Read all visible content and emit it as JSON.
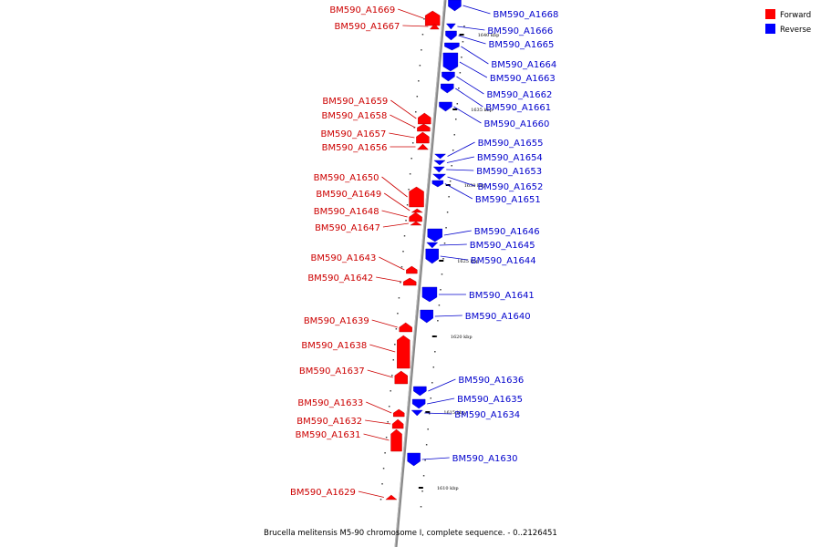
{
  "caption": "Brucella melitensis M5-90 chromosome I, complete sequence. - 0..2126451",
  "legend": [
    {
      "label": "Forward",
      "color": "#ff0000"
    },
    {
      "label": "Reverse",
      "color": "#0000ff"
    }
  ],
  "colors": {
    "forward": "#ff0000",
    "forward_label": "#cc0000",
    "reverse": "#0000ff",
    "reverse_label": "#0000cc",
    "axis": "#888888"
  },
  "position_labels": [
    "1640 kbp",
    "1635 kbp",
    "1630 kbp",
    "1625 kbp",
    "1620 kbp",
    "1615 kbp",
    "1610 kbp"
  ],
  "forward_genes": [
    "BM590_A1669",
    "BM590_A1667",
    "BM590_A1659",
    "BM590_A1658",
    "BM590_A1657",
    "BM590_A1656",
    "BM590_A1650",
    "BM590_A1649",
    "BM590_A1648",
    "BM590_A1647",
    "BM590_A1643",
    "BM590_A1642",
    "BM590_A1639",
    "BM590_A1638",
    "BM590_A1637",
    "BM590_A1633",
    "BM590_A1632",
    "BM590_A1631",
    "BM590_A1629"
  ],
  "reverse_genes": [
    "BM590_A1668",
    "BM590_A1666",
    "BM590_A1665",
    "BM590_A1664",
    "BM590_A1663",
    "BM590_A1662",
    "BM590_A1661",
    "BM590_A1660",
    "BM590_A1655",
    "BM590_A1654",
    "BM590_A1653",
    "BM590_A1652",
    "BM590_A1651",
    "BM590_A1646",
    "BM590_A1645",
    "BM590_A1644",
    "BM590_A1641",
    "BM590_A1640",
    "BM590_A1636",
    "BM590_A1635",
    "BM590_A1634",
    "BM590_A1630"
  ]
}
